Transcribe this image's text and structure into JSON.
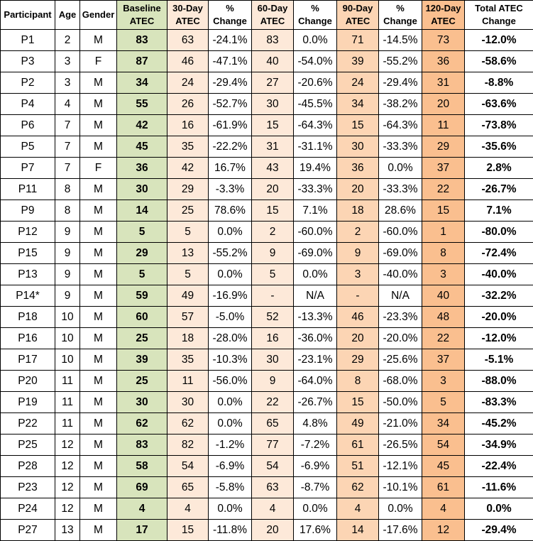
{
  "headers": {
    "participant": "Participant",
    "age": "Age",
    "gender": "Gender",
    "baseline_1": "Baseline",
    "baseline_2": "ATEC",
    "d30_1": "30-Day",
    "d30_2": "ATEC",
    "pc30_1": "%",
    "pc30_2": "Change",
    "d60_1": "60-Day",
    "d60_2": "ATEC",
    "pc60_1": "%",
    "pc60_2": "Change",
    "d90_1": "90-Day",
    "d90_2": "ATEC",
    "pc90_1": "%",
    "pc90_2": "Change",
    "d120_1": "120-Day",
    "d120_2": "ATEC",
    "total_1": "Total ATEC",
    "total_2": "Change"
  },
  "rows": [
    [
      "P1",
      "2",
      "M",
      "83",
      "63",
      "-24.1%",
      "83",
      "0.0%",
      "71",
      "-14.5%",
      "73",
      "-12.0%"
    ],
    [
      "P3",
      "3",
      "F",
      "87",
      "46",
      "-47.1%",
      "40",
      "-54.0%",
      "39",
      "-55.2%",
      "36",
      "-58.6%"
    ],
    [
      "P2",
      "3",
      "M",
      "34",
      "24",
      "-29.4%",
      "27",
      "-20.6%",
      "24",
      "-29.4%",
      "31",
      "-8.8%"
    ],
    [
      "P4",
      "4",
      "M",
      "55",
      "26",
      "-52.7%",
      "30",
      "-45.5%",
      "34",
      "-38.2%",
      "20",
      "-63.6%"
    ],
    [
      "P6",
      "7",
      "M",
      "42",
      "16",
      "-61.9%",
      "15",
      "-64.3%",
      "15",
      "-64.3%",
      "11",
      "-73.8%"
    ],
    [
      "P5",
      "7",
      "M",
      "45",
      "35",
      "-22.2%",
      "31",
      "-31.1%",
      "30",
      "-33.3%",
      "29",
      "-35.6%"
    ],
    [
      "P7",
      "7",
      "F",
      "36",
      "42",
      "16.7%",
      "43",
      "19.4%",
      "36",
      "0.0%",
      "37",
      "2.8%"
    ],
    [
      "P11",
      "8",
      "M",
      "30",
      "29",
      "-3.3%",
      "20",
      "-33.3%",
      "20",
      "-33.3%",
      "22",
      "-26.7%"
    ],
    [
      "P9",
      "8",
      "M",
      "14",
      "25",
      "78.6%",
      "15",
      "7.1%",
      "18",
      "28.6%",
      "15",
      "7.1%"
    ],
    [
      "P12",
      "9",
      "M",
      "5",
      "5",
      "0.0%",
      "2",
      "-60.0%",
      "2",
      "-60.0%",
      "1",
      "-80.0%"
    ],
    [
      "P15",
      "9",
      "M",
      "29",
      "13",
      "-55.2%",
      "9",
      "-69.0%",
      "9",
      "-69.0%",
      "8",
      "-72.4%"
    ],
    [
      "P13",
      "9",
      "M",
      "5",
      "5",
      "0.0%",
      "5",
      "0.0%",
      "3",
      "-40.0%",
      "3",
      "-40.0%"
    ],
    [
      "P14*",
      "9",
      "M",
      "59",
      "49",
      "-16.9%",
      "-",
      "N/A",
      "-",
      "N/A",
      "40",
      "-32.2%"
    ],
    [
      "P18",
      "10",
      "M",
      "60",
      "57",
      "-5.0%",
      "52",
      "-13.3%",
      "46",
      "-23.3%",
      "48",
      "-20.0%"
    ],
    [
      "P16",
      "10",
      "M",
      "25",
      "18",
      "-28.0%",
      "16",
      "-36.0%",
      "20",
      "-20.0%",
      "22",
      "-12.0%"
    ],
    [
      "P17",
      "10",
      "M",
      "39",
      "35",
      "-10.3%",
      "30",
      "-23.1%",
      "29",
      "-25.6%",
      "37",
      "-5.1%"
    ],
    [
      "P20",
      "11",
      "M",
      "25",
      "11",
      "-56.0%",
      "9",
      "-64.0%",
      "8",
      "-68.0%",
      "3",
      "-88.0%"
    ],
    [
      "P19",
      "11",
      "M",
      "30",
      "30",
      "0.0%",
      "22",
      "-26.7%",
      "15",
      "-50.0%",
      "5",
      "-83.3%"
    ],
    [
      "P22",
      "11",
      "M",
      "62",
      "62",
      "0.0%",
      "65",
      "4.8%",
      "49",
      "-21.0%",
      "34",
      "-45.2%"
    ],
    [
      "P25",
      "12",
      "M",
      "83",
      "82",
      "-1.2%",
      "77",
      "-7.2%",
      "61",
      "-26.5%",
      "54",
      "-34.9%"
    ],
    [
      "P28",
      "12",
      "M",
      "58",
      "54",
      "-6.9%",
      "54",
      "-6.9%",
      "51",
      "-12.1%",
      "45",
      "-22.4%"
    ],
    [
      "P23",
      "12",
      "M",
      "69",
      "65",
      "-5.8%",
      "63",
      "-8.7%",
      "62",
      "-10.1%",
      "61",
      "-11.6%"
    ],
    [
      "P24",
      "12",
      "M",
      "4",
      "4",
      "0.0%",
      "4",
      "0.0%",
      "4",
      "0.0%",
      "4",
      "0.0%"
    ],
    [
      "P27",
      "13",
      "M",
      "17",
      "15",
      "-11.8%",
      "20",
      "17.6%",
      "14",
      "-17.6%",
      "12",
      "-29.4%"
    ]
  ],
  "colors": {
    "baseline_fill": "#d8e4bc",
    "day30_fill": "#fde9d9",
    "day60_fill": "#fde9d9",
    "day90_fill": "#fcd5b4",
    "day120_fill": "#fabf8f"
  }
}
